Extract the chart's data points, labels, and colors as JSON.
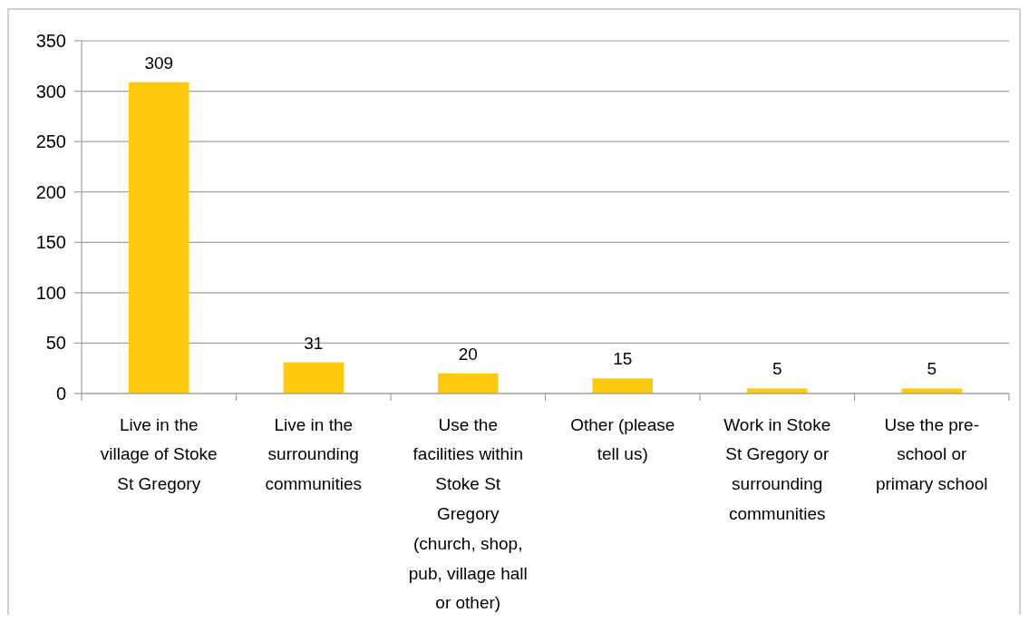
{
  "chart_data": {
    "type": "bar",
    "categories": [
      "Live in the village of Stoke St Gregory",
      "Live in the surrounding communities",
      "Use the facilities within Stoke St Gregory (church, shop, pub, village hall or other)",
      "Other (please tell us)",
      "Work in Stoke St Gregory or surrounding communities",
      "Use the pre-school or primary school"
    ],
    "values": [
      309,
      31,
      20,
      15,
      5,
      5
    ],
    "color": "#ffc90e",
    "ylim": [
      0,
      350
    ],
    "yticks": [
      0,
      50,
      100,
      150,
      200,
      250,
      300,
      350
    ],
    "grid": "y",
    "data_labels": true
  }
}
